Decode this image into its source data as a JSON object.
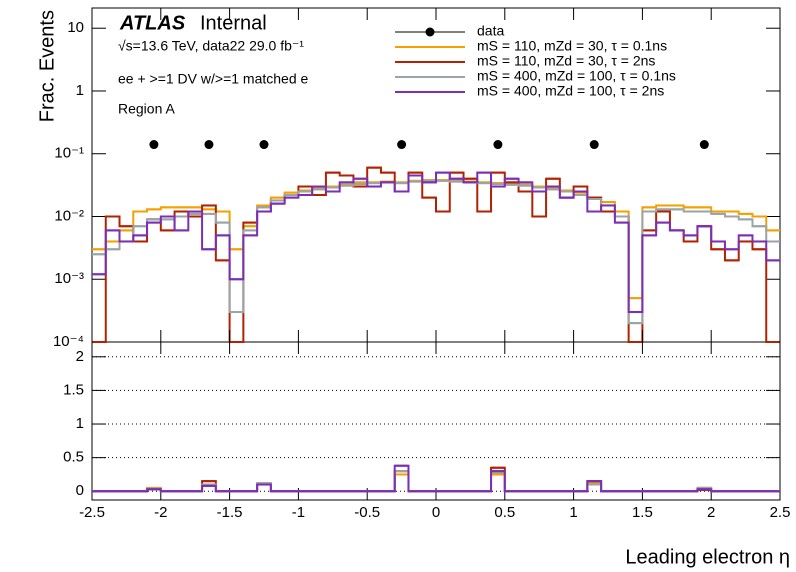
{
  "chart_data": [
    {
      "type": "histogram",
      "annotations": {
        "experiment": "ATLAS",
        "status": "Internal",
        "energy": "√s=13.6 TeV, data22 29.0 fb⁻¹",
        "selection": "ee + >=1 DV w/>=1 matched e",
        "region": "Region A"
      },
      "ylabel": "Frac. Events",
      "log_y": true,
      "ylim": [
        0.0001,
        21
      ],
      "yticks": [
        {
          "value": 0.0001,
          "label": "10⁻⁴"
        },
        {
          "value": 0.001,
          "label": "10⁻³"
        },
        {
          "value": 0.01,
          "label": "10⁻²"
        },
        {
          "value": 0.1,
          "label": "10⁻¹"
        },
        1,
        10
      ],
      "xlim": [
        -2.5,
        2.5
      ],
      "bins": [
        -2.5,
        -2.4,
        -2.3,
        -2.2,
        -2.1,
        -2.0,
        -1.9,
        -1.8,
        -1.7,
        -1.6,
        -1.5,
        -1.4,
        -1.3,
        -1.2,
        -1.1,
        -1.0,
        -0.9,
        -0.8,
        -0.7,
        -0.6,
        -0.5,
        -0.4,
        -0.3,
        -0.2,
        -0.1,
        0,
        0.1,
        0.2,
        0.3,
        0.4,
        0.5,
        0.6,
        0.7,
        0.8,
        0.9,
        1.0,
        1.1,
        1.2,
        1.3,
        1.4,
        1.5,
        1.6,
        1.7,
        1.8,
        1.9,
        2.0,
        2.1,
        2.2,
        2.3,
        2.4,
        2.5
      ],
      "points": {
        "name": "data",
        "color": "#000000",
        "x": [
          -2.05,
          -1.65,
          -1.25,
          -0.25,
          0.45,
          1.15,
          1.95
        ],
        "values": [
          0.14,
          0.14,
          0.14,
          0.14,
          0.14,
          0.14,
          0.14
        ]
      },
      "series": [
        {
          "name": "mS = 110, mZd = 30, τ = 0.1ns",
          "color": "#f5a000",
          "values": [
            0.003,
            0.004,
            0.006,
            0.012,
            0.013,
            0.014,
            0.014,
            0.014,
            0.013,
            0.012,
            0.003,
            0.007,
            0.015,
            0.02,
            0.024,
            0.026,
            0.028,
            0.03,
            0.032,
            0.035,
            0.035,
            0.036,
            0.035,
            0.037,
            0.038,
            0.038,
            0.037,
            0.036,
            0.035,
            0.034,
            0.033,
            0.032,
            0.03,
            0.029,
            0.026,
            0.024,
            0.02,
            0.017,
            0.012,
            0.0005,
            0.014,
            0.015,
            0.015,
            0.014,
            0.014,
            0.012,
            0.012,
            0.011,
            0.01,
            0.006
          ]
        },
        {
          "name": "mS = 110, mZd = 30, τ = 2ns",
          "color": "#b22200",
          "values": [
            0,
            0.01,
            0.007,
            0.004,
            0.009,
            0.006,
            0.012,
            0.01,
            0.015,
            0.002,
            0,
            0.008,
            0.012,
            0.018,
            0.022,
            0.03,
            0.022,
            0.05,
            0.045,
            0.03,
            0.06,
            0.05,
            0.025,
            0.05,
            0.02,
            0.012,
            0.05,
            0.04,
            0.012,
            0.05,
            0.035,
            0.025,
            0.01,
            0.04,
            0.02,
            0.03,
            0.02,
            0.012,
            0.01,
            0,
            0.006,
            0.012,
            0.006,
            0.004,
            0.007,
            0.003,
            0.002,
            0.004,
            0.003,
            0
          ]
        },
        {
          "name": "mS = 400, mZd = 100, τ = 0.1ns",
          "color": "#9aa3a6",
          "values": [
            0.0025,
            0.003,
            0.004,
            0.007,
            0.009,
            0.009,
            0.01,
            0.011,
            0.011,
            0.008,
            0.0003,
            0.006,
            0.014,
            0.018,
            0.022,
            0.025,
            0.027,
            0.029,
            0.031,
            0.033,
            0.034,
            0.035,
            0.034,
            0.036,
            0.037,
            0.037,
            0.036,
            0.035,
            0.034,
            0.033,
            0.032,
            0.031,
            0.029,
            0.027,
            0.025,
            0.022,
            0.019,
            0.015,
            0.01,
            0.0002,
            0.012,
            0.013,
            0.013,
            0.012,
            0.012,
            0.011,
            0.01,
            0.009,
            0.007,
            0.004
          ]
        },
        {
          "name": "mS = 400, mZd = 100, τ = 2ns",
          "color": "#7b2fb5",
          "values": [
            0.0012,
            0.006,
            0.004,
            0.005,
            0.008,
            0.01,
            0.006,
            0.012,
            0.003,
            0.005,
            0.001,
            0.005,
            0.012,
            0.016,
            0.02,
            0.022,
            0.03,
            0.025,
            0.035,
            0.04,
            0.03,
            0.035,
            0.025,
            0.045,
            0.035,
            0.05,
            0.04,
            0.035,
            0.05,
            0.03,
            0.04,
            0.035,
            0.025,
            0.03,
            0.02,
            0.025,
            0.012,
            0.015,
            0.008,
            0.0003,
            0.005,
            0.008,
            0.006,
            0.005,
            0.007,
            0.004,
            0.003,
            0.005,
            0.004,
            0.002
          ]
        }
      ]
    },
    {
      "type": "histogram",
      "xlabel": "Leading electron η",
      "xlim": [
        -2.5,
        2.5
      ],
      "xticks": [
        -2.5,
        -2,
        -1.5,
        -1,
        -0.5,
        0,
        0.5,
        1,
        1.5,
        2,
        2.5
      ],
      "ylim": [
        -0.13,
        2.22
      ],
      "yticks": [
        0,
        0.5,
        1,
        1.5,
        2
      ],
      "grid": true,
      "bins": [
        -2.5,
        -2.4,
        -2.3,
        -2.2,
        -2.1,
        -2.0,
        -1.9,
        -1.8,
        -1.7,
        -1.6,
        -1.5,
        -1.4,
        -1.3,
        -1.2,
        -1.1,
        -1.0,
        -0.9,
        -0.8,
        -0.7,
        -0.6,
        -0.5,
        -0.4,
        -0.3,
        -0.2,
        -0.1,
        0,
        0.1,
        0.2,
        0.3,
        0.4,
        0.5,
        0.6,
        0.7,
        0.8,
        0.9,
        1.0,
        1.1,
        1.2,
        1.3,
        1.4,
        1.5,
        1.6,
        1.7,
        1.8,
        1.9,
        2.0,
        2.1,
        2.2,
        2.3,
        2.4,
        2.5
      ],
      "series": [
        {
          "color": "#f5a000",
          "values": [
            0,
            0,
            0,
            0,
            0.05,
            0,
            0,
            0,
            0.1,
            0,
            0,
            0,
            0.12,
            0,
            0,
            0,
            0,
            0,
            0,
            0,
            0,
            0,
            0.25,
            0,
            0,
            0,
            0,
            0,
            0,
            0.25,
            0,
            0,
            0,
            0,
            0,
            0,
            0.12,
            0,
            0,
            0,
            0,
            0,
            0,
            0,
            0.05,
            0,
            0,
            0,
            0,
            0
          ]
        },
        {
          "color": "#b22200",
          "values": [
            0,
            0,
            0,
            0,
            0.03,
            0,
            0,
            0,
            0.15,
            0,
            0,
            0,
            0.1,
            0,
            0,
            0,
            0,
            0,
            0,
            0,
            0,
            0,
            0.3,
            0,
            0,
            0,
            0,
            0,
            0,
            0.35,
            0,
            0,
            0,
            0,
            0,
            0,
            0.15,
            0,
            0,
            0,
            0,
            0,
            0,
            0,
            0.02,
            0,
            0,
            0,
            0,
            0
          ]
        },
        {
          "color": "#9aa3a6",
          "values": [
            0,
            0,
            0,
            0,
            0.04,
            0,
            0,
            0,
            0.1,
            0,
            0,
            0,
            0.12,
            0,
            0,
            0,
            0,
            0,
            0,
            0,
            0,
            0,
            0.3,
            0,
            0,
            0,
            0,
            0,
            0,
            0.28,
            0,
            0,
            0,
            0,
            0,
            0,
            0.1,
            0,
            0,
            0,
            0,
            0,
            0,
            0,
            0.05,
            0,
            0,
            0,
            0,
            0
          ]
        },
        {
          "color": "#7b2fb5",
          "values": [
            0,
            0,
            0,
            0,
            0.03,
            0,
            0,
            0,
            0.08,
            0,
            0,
            0,
            0.1,
            0,
            0,
            0,
            0,
            0,
            0,
            0,
            0,
            0,
            0.38,
            0,
            0,
            0,
            0,
            0,
            0,
            0.3,
            0,
            0,
            0,
            0,
            0,
            0,
            0.15,
            0,
            0,
            0,
            0,
            0,
            0,
            0,
            0.03,
            0,
            0,
            0,
            0,
            0
          ]
        }
      ]
    }
  ]
}
